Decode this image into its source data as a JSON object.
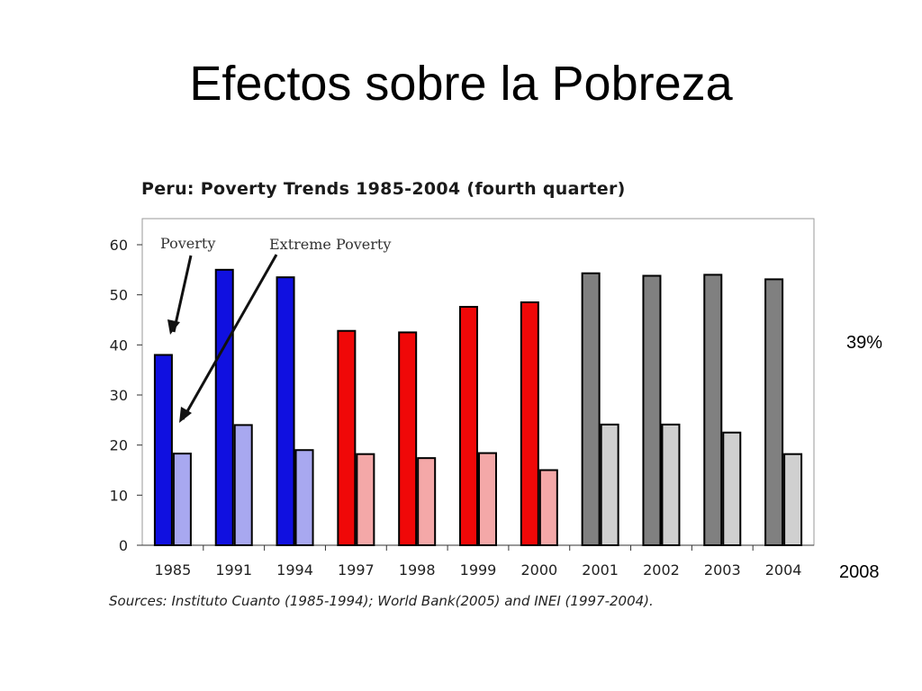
{
  "slide": {
    "title": "Efectos sobre la Pobreza",
    "note_percent": "39%",
    "note_year": "2008"
  },
  "chart_data": {
    "type": "bar",
    "title": "Peru: Poverty Trends 1985-2004 (fourth quarter)",
    "xlabel": "",
    "ylabel": "",
    "ylim": [
      0,
      60
    ],
    "yticks": [
      0,
      10,
      20,
      30,
      40,
      50,
      60
    ],
    "grid": false,
    "categories": [
      "1985",
      "1991",
      "1994",
      "1997",
      "1998",
      "1999",
      "2000",
      "2001",
      "2002",
      "2003",
      "2004"
    ],
    "series": [
      {
        "name": "Poverty",
        "values": [
          38.0,
          55.0,
          53.5,
          42.8,
          42.5,
          47.6,
          48.5,
          54.3,
          53.8,
          54.0,
          53.1
        ]
      },
      {
        "name": "Extreme Poverty",
        "values": [
          18.3,
          24.0,
          19.0,
          18.2,
          17.4,
          18.4,
          15.0,
          24.1,
          24.1,
          22.5,
          18.2
        ]
      }
    ],
    "bar_colors": [
      {
        "poverty": "#1010e0",
        "extreme": "#a8a8f0"
      },
      {
        "poverty": "#1010e0",
        "extreme": "#a8a8f0"
      },
      {
        "poverty": "#1010e0",
        "extreme": "#a8a8f0"
      },
      {
        "poverty": "#f00808",
        "extreme": "#f4a8a8"
      },
      {
        "poverty": "#f00808",
        "extreme": "#f4a8a8"
      },
      {
        "poverty": "#f00808",
        "extreme": "#f4a8a8"
      },
      {
        "poverty": "#f00808",
        "extreme": "#f4a8a8"
      },
      {
        "poverty": "#808080",
        "extreme": "#d0d0d0"
      },
      {
        "poverty": "#808080",
        "extreme": "#d0d0d0"
      },
      {
        "poverty": "#808080",
        "extreme": "#d0d0d0"
      },
      {
        "poverty": "#808080",
        "extreme": "#d0d0d0"
      }
    ],
    "annotations": [
      "Poverty",
      "Extreme Poverty"
    ],
    "source": "Sources: Instituto Cuanto (1985-1994);  World Bank(2005) and INEI (1997-2004)."
  }
}
